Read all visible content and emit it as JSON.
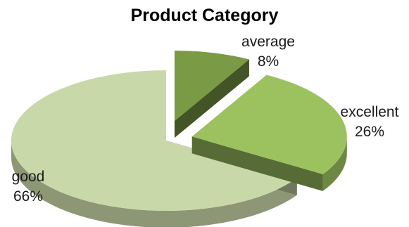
{
  "chart_data": {
    "type": "pie",
    "title": "Product Category",
    "slices": [
      {
        "label": "average",
        "value": 8,
        "value_label": "8%",
        "color": "#7a9a45"
      },
      {
        "label": "excellent",
        "value": 26,
        "value_label": "26%",
        "color": "#9cc260"
      },
      {
        "label": "good",
        "value": 66,
        "value_label": "66%",
        "color": "#c9d8a8"
      }
    ],
    "style": "3d-exploded"
  }
}
